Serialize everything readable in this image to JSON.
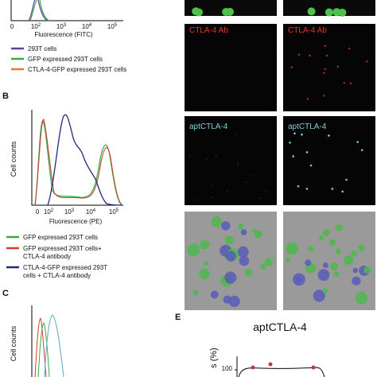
{
  "panel_a": {
    "x_ticks": [
      "0",
      {
        "base": "10",
        "exp": "2"
      },
      {
        "base": "10",
        "exp": "3"
      },
      {
        "base": "10",
        "exp": "4"
      },
      {
        "base": "10",
        "exp": "5"
      }
    ],
    "x_label": "Fluorescence (FITC)",
    "legend": [
      "293T cells",
      "GFP expressed 293T cells",
      "CTLA-4-GFP expressed 293T cells"
    ]
  },
  "panel_b": {
    "label": "B",
    "y_label": "Cell counts",
    "x_ticks": [
      "0",
      {
        "base": "10",
        "exp": "2"
      },
      {
        "base": "10",
        "exp": "3"
      },
      {
        "base": "10",
        "exp": "4"
      },
      {
        "base": "10",
        "exp": "5"
      }
    ],
    "x_label": "Fluorescence (PE)",
    "legend": [
      [
        "GFP expressed 293T cells"
      ],
      [
        "GFP expressed 293T cells+",
        "CTLA-4 antibody"
      ],
      [
        "CTLA-4-GFP expressed 293T",
        "cells + CTLA-4 antibody"
      ]
    ]
  },
  "panel_c": {
    "label": "C",
    "y_label": "Cell counts"
  },
  "panel_d": {
    "row_labels": [
      "CTLA-4 Ab",
      "aptCTLA-4"
    ]
  },
  "panel_e": {
    "label": "E",
    "title": "aptCTLA-4",
    "y_label": "s (%)",
    "y_tick": "100"
  }
}
